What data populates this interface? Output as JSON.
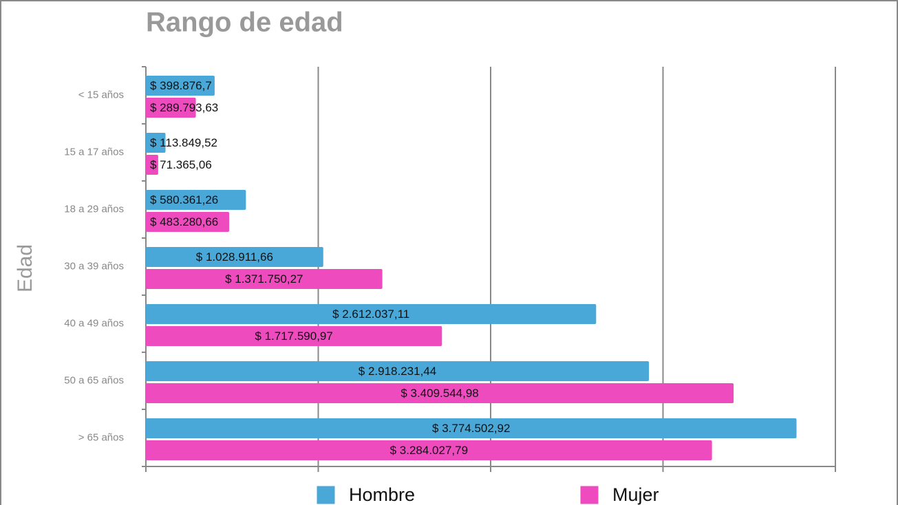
{
  "chart_data": {
    "type": "bar",
    "orientation": "horizontal",
    "title": "Rango de edad",
    "y_label": "Edad",
    "categories": [
      "< 15 años",
      "15 a 17 años",
      "18 a 29 años",
      "30 a 39 años",
      "40 a 49 años",
      "50 a 65 años",
      "> 65 años"
    ],
    "series": [
      {
        "name": "Hombre",
        "color": "#4aa8d8",
        "values": [
          398876.7,
          113849.52,
          580361.26,
          1028911.66,
          2612037.11,
          2918231.44,
          3774502.92
        ],
        "value_labels": [
          "$ 398.876,7",
          "$ 113.849,52",
          "$ 580.361,26",
          "$ 1.028.911,66",
          "$ 2.612.037,11",
          "$ 2.918.231,44",
          "$ 3.774.502,92"
        ]
      },
      {
        "name": "Mujer",
        "color": "#ee4bbf",
        "values": [
          289793.63,
          71365.06,
          483280.66,
          1371750.27,
          1717590.97,
          3409544.98,
          3284027.79
        ],
        "value_labels": [
          "$ 289.793,63",
          "$ 71.365,06",
          "$ 483.280,66",
          "$ 1.371.750,27",
          "$ 1.717.590,97",
          "$ 3.409.544,98",
          "$ 3.284.027,79"
        ]
      }
    ],
    "xlim": [
      0,
      4000000
    ],
    "xticks": [
      0,
      1000000,
      2000000,
      3000000,
      4000000
    ],
    "grid": true,
    "legend": "bottom"
  }
}
